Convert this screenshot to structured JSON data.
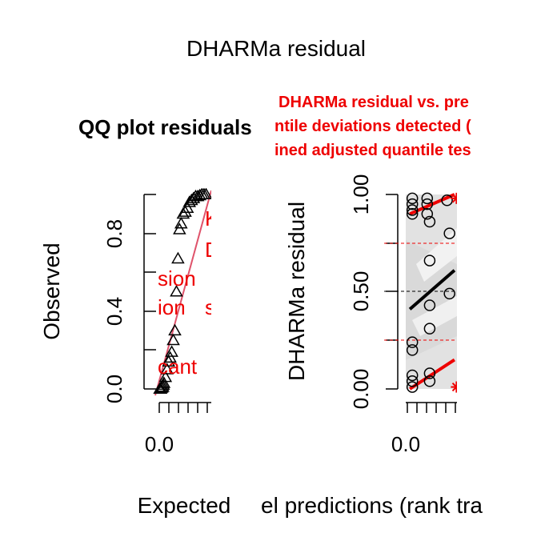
{
  "title": "DHARMa residual",
  "colors": {
    "red": "#ee0000",
    "pink": "#df536b",
    "gray_band": "#d9d9d9",
    "black": "#000000"
  },
  "chart_data": [
    {
      "type": "scatter",
      "title": "QQ plot residuals",
      "xlabel": "Expected",
      "ylabel": "Observed",
      "x_tick_labels": [
        "0.0"
      ],
      "y_tick_labels": [
        "0.0",
        "0.4",
        "0.8"
      ],
      "xlim": [
        0,
        1
      ],
      "ylim": [
        0,
        1
      ],
      "marker": "triangle",
      "identity_line": true,
      "test_annotations": [
        "sion",
        "ion",
        "cant",
        "s",
        "D"
      ],
      "points": [
        [
          0.01,
          0.0
        ],
        [
          0.02,
          0.0
        ],
        [
          0.03,
          0.0
        ],
        [
          0.05,
          0.005
        ],
        [
          0.07,
          0.01
        ],
        [
          0.08,
          0.02
        ],
        [
          0.09,
          0.03
        ],
        [
          0.12,
          0.06
        ],
        [
          0.15,
          0.1
        ],
        [
          0.18,
          0.14
        ],
        [
          0.21,
          0.16
        ],
        [
          0.24,
          0.19
        ],
        [
          0.27,
          0.25
        ],
        [
          0.3,
          0.3
        ],
        [
          0.33,
          0.5
        ],
        [
          0.36,
          0.67
        ],
        [
          0.39,
          0.82
        ],
        [
          0.42,
          0.85
        ],
        [
          0.46,
          0.9
        ],
        [
          0.5,
          0.91
        ],
        [
          0.54,
          0.93
        ],
        [
          0.58,
          0.96
        ],
        [
          0.62,
          0.97
        ],
        [
          0.66,
          0.98
        ],
        [
          0.7,
          0.99
        ],
        [
          0.74,
          0.99
        ],
        [
          0.78,
          0.995
        ],
        [
          0.82,
          1.0
        ],
        [
          0.86,
          1.0
        ],
        [
          0.9,
          1.0
        ]
      ]
    },
    {
      "type": "scatter",
      "title_lines": [
        "DHARMa residual vs. pre",
        "ntile deviations detected (",
        "ined adjusted quantile tes"
      ],
      "xlabel": "el predictions (rank tra",
      "ylabel": "DHARMa residual",
      "x_tick_labels": [
        "0.0"
      ],
      "y_tick_labels": [
        "0.00",
        "0.50",
        "1.00"
      ],
      "xlim": [
        0,
        1
      ],
      "ylim": [
        0,
        1
      ],
      "quantile_reference_lines": [
        0.25,
        0.5,
        0.75
      ],
      "marker": "circle",
      "points": [
        [
          0.1,
          0.98
        ],
        [
          0.1,
          0.95
        ],
        [
          0.1,
          0.92
        ],
        [
          0.1,
          0.9
        ],
        [
          0.4,
          0.98
        ],
        [
          0.4,
          0.95
        ],
        [
          0.4,
          0.9
        ],
        [
          0.45,
          0.86
        ],
        [
          0.8,
          0.97
        ],
        [
          0.85,
          0.8
        ],
        [
          0.45,
          0.66
        ],
        [
          0.45,
          0.43
        ],
        [
          0.45,
          0.31
        ],
        [
          0.85,
          0.49
        ],
        [
          0.1,
          0.24
        ],
        [
          0.1,
          0.2
        ],
        [
          0.1,
          0.07
        ],
        [
          0.1,
          0.04
        ],
        [
          0.1,
          0.01
        ],
        [
          0.45,
          0.08
        ],
        [
          0.45,
          0.04
        ]
      ],
      "quantile_fits": [
        {
          "quantile": 0.25,
          "color": "red",
          "x": [
            0.05,
            0.95
          ],
          "y": [
            0.0,
            0.15
          ]
        },
        {
          "quantile": 0.5,
          "color": "black",
          "x": [
            0.05,
            0.95
          ],
          "y": [
            0.41,
            0.61
          ]
        },
        {
          "quantile": 0.75,
          "color": "red",
          "x": [
            0.05,
            0.95
          ],
          "y": [
            0.9,
            1.0
          ]
        }
      ],
      "outliers": [
        [
          0.99,
          0.98
        ],
        [
          0.99,
          0.01
        ]
      ]
    }
  ]
}
